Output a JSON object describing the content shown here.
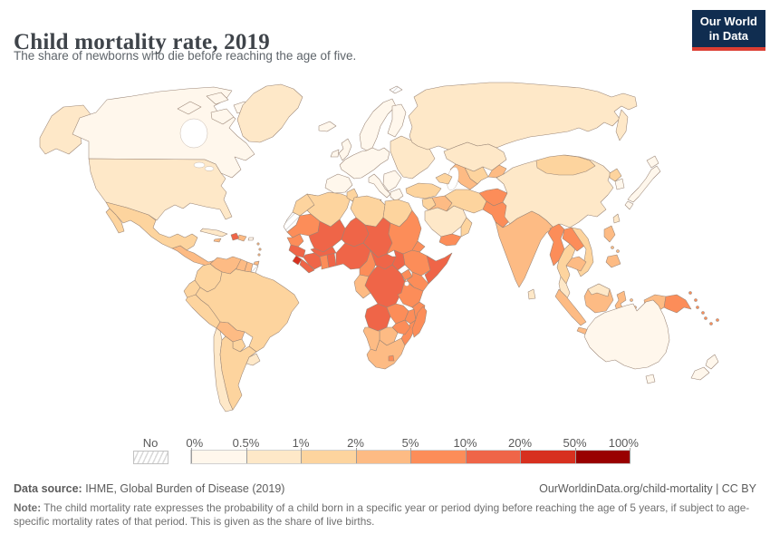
{
  "header": {
    "title": "Child mortality rate, 2019",
    "subtitle": "The share of newborns who die before reaching the age of five.",
    "logo": {
      "line1": "Our World",
      "line2": "in Data",
      "bg": "#102d50",
      "accent": "#dc3e32"
    }
  },
  "chart_data": {
    "type": "choropleth",
    "title": "Child mortality rate, 2019",
    "unit": "%",
    "projection": "world",
    "legend": {
      "no_data_label": "No data",
      "tick_labels": [
        "0%",
        "0.5%",
        "1%",
        "2%",
        "5%",
        "10%",
        "20%",
        "50%",
        "100%"
      ],
      "band_colors": [
        "#fff7ec",
        "#fee8c8",
        "#fdd49e",
        "#fdbb84",
        "#fc8d59",
        "#ef6548",
        "#d7301f",
        "#990000"
      ],
      "no_data_pattern": "gray-diagonal-hatch"
    },
    "regions": {
      "alaska": 2,
      "canada": 1,
      "arctic-islands-1": 1,
      "arctic-islands-2": 1,
      "arctic-islands-3": 1,
      "arctic-islands-4": 1,
      "greenland": 2,
      "united-states": 2,
      "mexico": 3,
      "baja": 3,
      "central-america": 4,
      "cuba": 2,
      "haiti": 6,
      "dominican-republic": 4,
      "jamaica": 4,
      "puerto-rico": 1,
      "lesser-antilles": 4,
      "trinidad": 4,
      "venezuela": 4,
      "guyana": 4,
      "suriname": 4,
      "french-guiana": 0,
      "colombia": 3,
      "ecuador": 3,
      "peru": 3,
      "brazil": 3,
      "bolivia": 4,
      "paraguay": 3,
      "chile": 2,
      "argentina": 3,
      "uruguay": 2,
      "iceland": 1,
      "ireland": 1,
      "united-kingdom": 1,
      "scandinavia": 1,
      "finland": 1,
      "western-europe": 1,
      "iberia": 1,
      "italy": 1,
      "sicily": 1,
      "balkans": 1,
      "greece": 1,
      "eastern-europe": 2,
      "russia": 2,
      "kamchatka": 2,
      "svalbard": 0,
      "kazakhstan": 2,
      "uzbekistan": 3,
      "turkmenistan": 4,
      "kyrgyzstan-tajikistan": 4,
      "caucasus": 3,
      "turkey": 3,
      "levant": 3,
      "iraq": 4,
      "iran": 3,
      "afghanistan": 5,
      "pakistan": 5,
      "saudi-arabia": 2,
      "yemen": 5,
      "oman": 3,
      "india": 4,
      "sri-lanka": 2,
      "bangladesh": 4,
      "china": 2,
      "mongolia": 3,
      "north-korea": 3,
      "south-korea": 1,
      "japan-hokkaido": 1,
      "japan-honshu": 1,
      "japan-kyushu": 1,
      "taiwan": 2,
      "myanmar": 5,
      "thailand": 3,
      "laos": 5,
      "vietnam": 3,
      "cambodia": 4,
      "malaysia": 2,
      "philippines-luzon": 4,
      "philippines-visayas": 4,
      "philippines-mindanao": 4,
      "sumatra": 4,
      "java": 4,
      "borneo": 4,
      "borneo-malaysia": 2,
      "sulawesi": 4,
      "moluccas": 4,
      "timor": 4,
      "west-papua": 4,
      "papua-new-guinea": 5,
      "png-islands": 5,
      "solomon-islands": 5,
      "pacific-islands": 5,
      "australia": 1,
      "tasmania": 1,
      "new-zealand-north": 1,
      "new-zealand-south": 1,
      "morocco": 3,
      "western-sahara": 0,
      "algeria": 3,
      "tunisia": 3,
      "libya": 3,
      "egypt": 3,
      "mauritania": 5,
      "mali": 6,
      "niger": 6,
      "chad": 6,
      "sudan": 5,
      "eritrea": 5,
      "ethiopia": 5,
      "somalia": 6,
      "senegal": 5,
      "guinea": 6,
      "sierra-leone": 7,
      "liberia": 6,
      "cote-divoire": 6,
      "ghana": 5,
      "togo-benin": 6,
      "burkina-faso": 6,
      "nigeria": 6,
      "cameroon": 5,
      "central-african-republic": 6,
      "south-sudan": 6,
      "gabon-congo": 4,
      "drc": 6,
      "uganda": 5,
      "kenya": 5,
      "tanzania": 5,
      "angola": 6,
      "zambia": 5,
      "malawi": 5,
      "mozambique": 5,
      "zimbabwe": 5,
      "botswana": 4,
      "namibia": 4,
      "south-africa": 4,
      "lesotho": 5,
      "madagascar": 5
    }
  },
  "footer": {
    "source_label": "Data source:",
    "source_text": " IHME, Global Burden of Disease (2019)",
    "link_text": "OurWorldinData.org/child-mortality | CC BY",
    "note_label": "Note:",
    "note_text": " The child mortality rate expresses the probability of a child born in a specific year or period dying before reaching the age of 5 years, if subject to age-specific mortality rates of that period. This is given as the share of live births."
  }
}
